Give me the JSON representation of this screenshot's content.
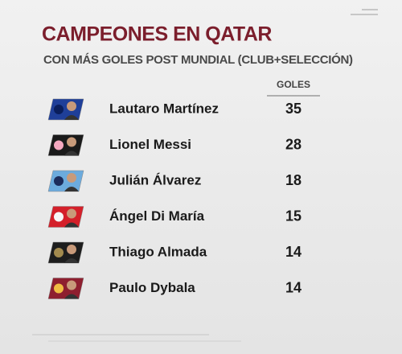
{
  "header": {
    "title": "CAMPEONES EN QATAR",
    "subtitle": "CON MÁS GOLES POST MUNDIAL (CLUB+SELECCIÓN)"
  },
  "table": {
    "column_header": "GOLES",
    "rows": [
      {
        "name": "Lautaro Martínez",
        "goals": "35"
      },
      {
        "name": "Lionel Messi",
        "goals": "28"
      },
      {
        "name": "Julián Álvarez",
        "goals": "18"
      },
      {
        "name": "Ángel Di María",
        "goals": "15"
      },
      {
        "name": "Thiago Almada",
        "goals": "14"
      },
      {
        "name": "Paulo Dybala",
        "goals": "14"
      }
    ]
  }
}
